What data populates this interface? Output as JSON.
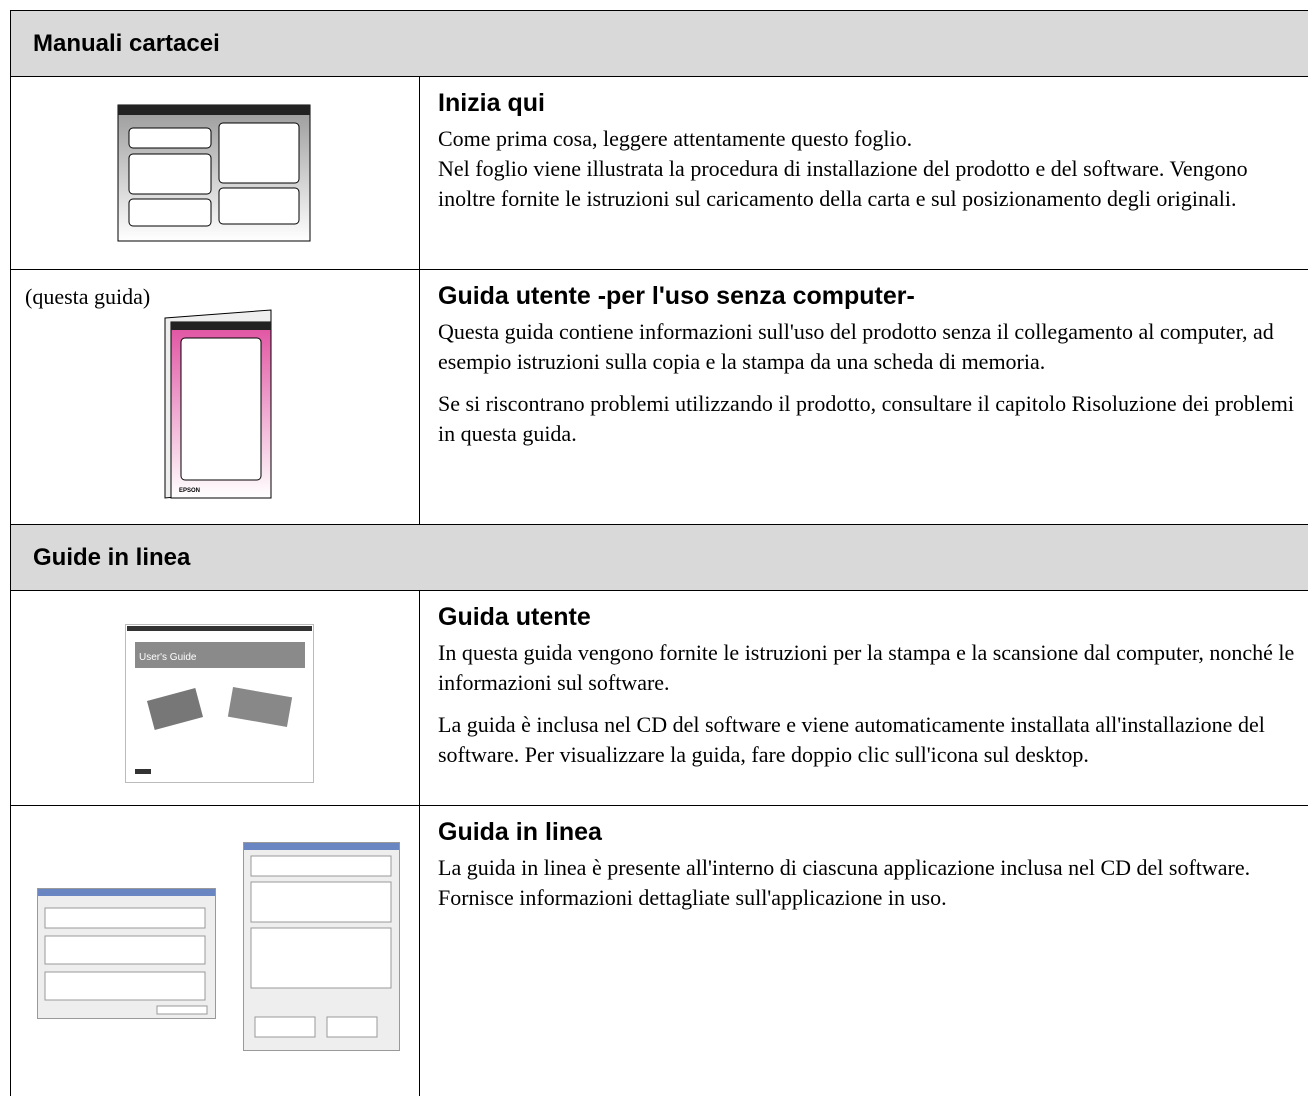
{
  "sections": [
    {
      "title": "Manuali cartacei",
      "rows": [
        {
          "title": "Inizia qui",
          "paragraphs": [
            "Come prima cosa, leggere attentamente questo foglio.",
            "Nel foglio viene illustrata la procedura di installazione del prodotto e del software. Vengono inoltre fornite le istruzioni sul caricamento della carta e sul posizionamento degli originali."
          ]
        },
        {
          "caption": "(questa guida)",
          "image_text": "EPSON",
          "title": "Guida utente -per l'uso senza computer-",
          "paragraphs": [
            "Questa guida contiene informazioni sull'uso del prodotto senza il collegamento al computer, ad esempio istruzioni sulla copia e la stampa da una scheda di memoria.",
            "Se si riscontrano problemi utilizzando il prodotto, consultare il capitolo Risoluzione dei problemi in questa guida."
          ]
        }
      ]
    },
    {
      "title": "Guide in linea",
      "rows": [
        {
          "image_text": "User's Guide",
          "title": "Guida utente",
          "paragraphs": [
            "In questa guida vengono fornite le istruzioni per la stampa e la scansione dal computer, nonché le informazioni sul software.",
            "La guida è inclusa nel CD del software e viene automaticamente installata all'installazione del software. Per visualizzare la guida, fare doppio clic sull'icona sul desktop."
          ]
        },
        {
          "title": "Guida in linea",
          "paragraphs": [
            "La guida in linea è presente all'interno di ciascuna applicazione inclusa nel CD del software. Fornisce informazioni dettagliate sull'applicazione in uso."
          ]
        }
      ]
    }
  ]
}
